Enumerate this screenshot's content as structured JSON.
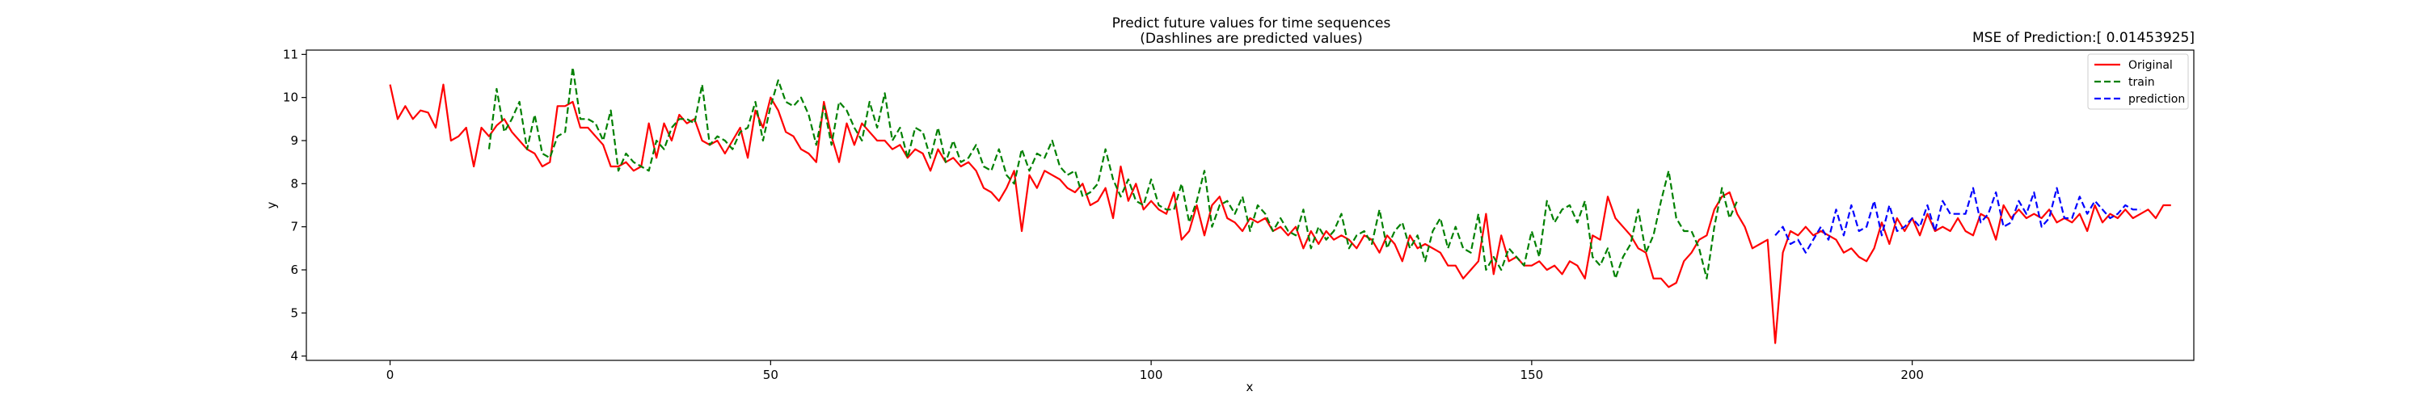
{
  "chart_data": {
    "type": "line",
    "title_line1": "Predict future values for time sequences",
    "title_line2": "(Dashlines are predicted values)",
    "mse_label": "MSE of Prediction:[ 0.01453925]",
    "xlabel": "x",
    "ylabel": "y",
    "xlim": [
      -11,
      237
    ],
    "ylim": [
      3.9,
      11.1
    ],
    "xticks": [
      0,
      50,
      100,
      150,
      200
    ],
    "yticks": [
      4,
      5,
      6,
      7,
      8,
      9,
      10,
      11
    ],
    "grid": false,
    "legend_position": "top-right",
    "series": [
      {
        "name": "Original",
        "color": "#ff0000",
        "dash": false,
        "x_start": 0,
        "values": [
          10.3,
          9.5,
          9.8,
          9.5,
          9.7,
          9.65,
          9.3,
          10.3,
          9.0,
          9.1,
          9.3,
          8.4,
          9.3,
          9.1,
          9.35,
          9.5,
          9.2,
          9.0,
          8.8,
          8.7,
          8.4,
          8.5,
          9.8,
          9.8,
          9.9,
          9.3,
          9.3,
          9.1,
          8.9,
          8.4,
          8.4,
          8.5,
          8.3,
          8.4,
          9.4,
          8.6,
          9.4,
          9.0,
          9.6,
          9.4,
          9.5,
          9.0,
          8.9,
          9.0,
          8.7,
          9.0,
          9.3,
          8.6,
          9.7,
          9.3,
          10.0,
          9.7,
          9.2,
          9.1,
          8.8,
          8.7,
          8.5,
          9.9,
          9.1,
          8.5,
          9.4,
          8.9,
          9.4,
          9.2,
          9.0,
          9.0,
          8.8,
          8.9,
          8.6,
          8.8,
          8.7,
          8.3,
          8.8,
          8.5,
          8.6,
          8.4,
          8.5,
          8.3,
          7.9,
          7.8,
          7.6,
          7.9,
          8.3,
          6.9,
          8.2,
          7.9,
          8.3,
          8.2,
          8.1,
          7.9,
          7.8,
          8.0,
          7.5,
          7.6,
          7.9,
          7.2,
          8.4,
          7.6,
          8.0,
          7.4,
          7.6,
          7.4,
          7.3,
          7.8,
          6.7,
          6.9,
          7.5,
          6.8,
          7.5,
          7.7,
          7.2,
          7.1,
          6.9,
          7.2,
          7.1,
          7.2,
          6.9,
          7.0,
          6.8,
          7.0,
          6.5,
          6.9,
          6.6,
          6.9,
          6.7,
          6.8,
          6.7,
          6.5,
          6.8,
          6.7,
          6.4,
          6.8,
          6.6,
          6.2,
          6.8,
          6.5,
          6.6,
          6.5,
          6.4,
          6.1,
          6.1,
          5.8,
          6.0,
          6.2,
          7.3,
          5.9,
          6.8,
          6.2,
          6.3,
          6.1,
          6.1,
          6.2,
          6.0,
          6.1,
          5.9,
          6.2,
          6.1,
          5.8,
          6.8,
          6.7,
          7.7,
          7.2,
          7.0,
          6.8,
          6.5,
          6.4,
          5.8,
          5.8,
          5.6,
          5.7,
          6.2,
          6.4,
          6.7,
          6.8,
          7.4,
          7.7,
          7.8,
          7.3,
          7.0,
          6.5,
          6.6,
          6.7,
          4.3,
          6.4,
          6.9,
          6.8,
          7.0,
          6.8,
          6.9,
          6.8,
          6.7,
          6.4,
          6.5,
          6.3,
          6.2,
          6.5,
          7.1,
          6.6,
          7.2,
          6.9,
          7.2,
          6.8,
          7.3,
          6.9,
          7.0,
          6.9,
          7.2,
          6.9,
          6.8,
          7.3,
          7.2,
          6.7,
          7.5,
          7.2,
          7.4,
          7.2,
          7.3,
          7.2,
          7.4,
          7.1,
          7.2,
          7.1,
          7.3,
          6.9,
          7.5,
          7.1,
          7.3,
          7.2,
          7.4,
          7.2,
          7.3,
          7.4,
          7.2,
          7.5,
          7.5
        ]
      },
      {
        "name": "train",
        "color": "#008000",
        "dash": true,
        "x_start": 13,
        "values": [
          8.8,
          10.2,
          9.2,
          9.5,
          9.9,
          8.8,
          9.6,
          8.7,
          8.6,
          9.1,
          9.2,
          10.7,
          9.5,
          9.5,
          9.4,
          9.0,
          9.7,
          8.3,
          8.7,
          8.5,
          8.4,
          8.3,
          9.0,
          8.8,
          9.3,
          9.5,
          9.5,
          9.4,
          10.3,
          8.9,
          9.1,
          9.0,
          8.8,
          9.2,
          9.3,
          9.9,
          9.0,
          9.8,
          10.4,
          9.9,
          9.8,
          10.0,
          9.6,
          8.9,
          9.8,
          8.9,
          9.9,
          9.7,
          9.3,
          9.0,
          9.9,
          9.3,
          10.1,
          9.0,
          9.3,
          8.6,
          9.3,
          9.2,
          8.6,
          9.3,
          8.5,
          9.0,
          8.5,
          8.6,
          8.9,
          8.4,
          8.3,
          8.8,
          8.2,
          8.0,
          8.8,
          8.3,
          8.7,
          8.6,
          9.0,
          8.4,
          8.2,
          8.3,
          7.7,
          7.8,
          8.0,
          8.8,
          8.1,
          7.7,
          8.1,
          7.6,
          7.5,
          8.1,
          7.5,
          7.4,
          7.4,
          8.0,
          7.1,
          7.6,
          8.3,
          7.0,
          7.5,
          7.6,
          7.3,
          7.7,
          6.9,
          7.5,
          7.3,
          6.9,
          7.2,
          6.9,
          6.8,
          7.4,
          6.5,
          7.0,
          6.7,
          6.9,
          7.3,
          6.5,
          6.8,
          6.9,
          6.6,
          7.4,
          6.5,
          6.9,
          7.1,
          6.5,
          6.8,
          6.2,
          6.9,
          7.2,
          6.5,
          7.0,
          6.5,
          6.4,
          7.3,
          6.0,
          6.3,
          6.0,
          6.5,
          6.3,
          6.1,
          6.9,
          6.3,
          7.6,
          7.1,
          7.4,
          7.5,
          7.1,
          7.6,
          6.3,
          6.1,
          6.5,
          5.8,
          6.3,
          6.6,
          7.4,
          6.4,
          6.8,
          7.6,
          8.3,
          7.2,
          6.9,
          6.9,
          6.5,
          5.8,
          7.0,
          7.9,
          7.2,
          7.6
        ]
      },
      {
        "name": "prediction",
        "color": "#0000ff",
        "dash": true,
        "x_start": 182,
        "values": [
          6.8,
          7.0,
          6.6,
          6.7,
          6.4,
          6.7,
          7.0,
          6.7,
          7.4,
          6.8,
          7.5,
          6.9,
          7.0,
          7.6,
          6.8,
          7.5,
          6.9,
          7.0,
          7.2,
          7.0,
          7.5,
          6.9,
          7.6,
          7.3,
          7.3,
          7.3,
          7.9,
          7.1,
          7.3,
          7.8,
          7.0,
          7.1,
          7.6,
          7.3,
          7.8,
          7.0,
          7.2,
          7.9,
          7.2,
          7.2,
          7.7,
          7.3,
          7.6,
          7.4,
          7.2,
          7.3,
          7.5,
          7.4,
          7.4
        ]
      }
    ]
  }
}
